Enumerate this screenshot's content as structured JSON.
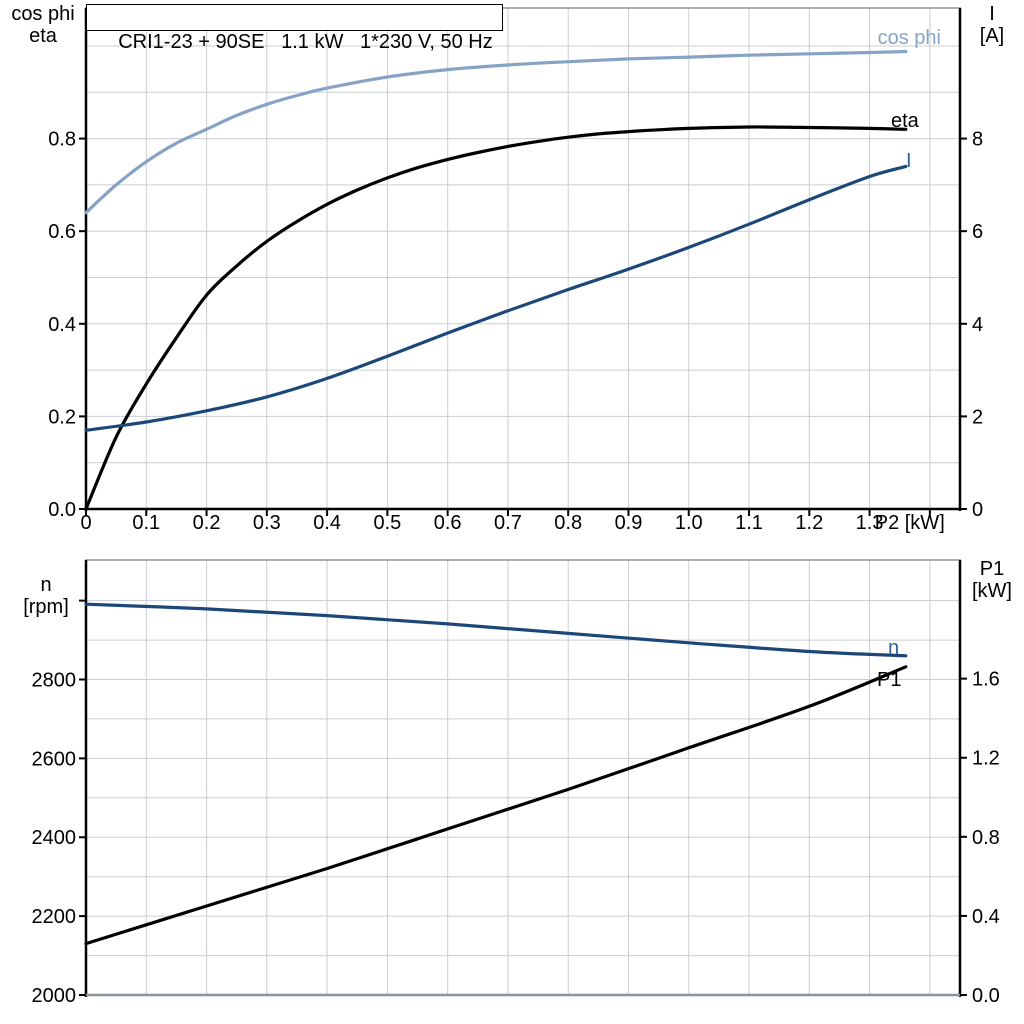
{
  "page": {
    "background": "#ffffff"
  },
  "title": "CRI1-23 + 90SE   1.1 kW   1*230 V, 50 Hz",
  "colors": {
    "light_blue_curve": "#86a3c6",
    "dark_blue_curve": "#1b4878",
    "blue_label": "#2e639c",
    "black": "#000000",
    "grid": "#c9cdd2",
    "frame_gray": "#8f9499"
  },
  "chart_data": [
    {
      "type": "line",
      "title": "CRI1-23 + 90SE   1.1 kW   1*230 V, 50 Hz",
      "xlabel": "P2 [kW]",
      "ylabel_left": [
        "cos phi",
        "eta"
      ],
      "ylabel_right": [
        "I",
        "[A]"
      ],
      "xlim": [
        0,
        1.45
      ],
      "ylim_left": [
        0,
        1.082
      ],
      "ylim_right": [
        0,
        10.82
      ],
      "legend": "inline-end-labels",
      "grid": {
        "x_step": 0.1,
        "y_left_step": 0.1,
        "shown": true
      },
      "x_ticks": {
        "values": [
          0,
          0.1,
          0.2,
          0.3,
          0.4,
          0.5,
          0.6,
          0.7,
          0.8,
          0.9,
          1.0,
          1.1,
          1.2,
          1.3,
          1.4
        ],
        "labels": [
          "0",
          "0.1",
          "0.2",
          "0.3",
          "0.4",
          "0.5",
          "0.6",
          "0.7",
          "0.8",
          "0.9",
          "1.0",
          "1.1",
          "1.2",
          "1.3",
          ""
        ]
      },
      "left_ticks": {
        "values": [
          0,
          0.2,
          0.4,
          0.6,
          0.8
        ],
        "labels": [
          "0.0",
          "0.2",
          "0.4",
          "0.6",
          "0.8"
        ]
      },
      "right_ticks": {
        "values": [
          0,
          2,
          4,
          6,
          8
        ],
        "labels": [
          "0",
          "2",
          "4",
          "6",
          "8"
        ]
      },
      "series": [
        {
          "name": "cos phi",
          "axis": "left",
          "color": "#86a3c6",
          "label_color": "#86a3c6",
          "x": [
            0,
            0.05,
            0.1,
            0.15,
            0.2,
            0.25,
            0.3,
            0.35,
            0.4,
            0.5,
            0.6,
            0.7,
            0.8,
            0.9,
            1.0,
            1.1,
            1.2,
            1.3,
            1.36
          ],
          "y": [
            0.64,
            0.7,
            0.75,
            0.79,
            0.82,
            0.85,
            0.874,
            0.893,
            0.909,
            0.933,
            0.949,
            0.959,
            0.966,
            0.972,
            0.976,
            0.98,
            0.983,
            0.986,
            0.988
          ]
        },
        {
          "name": "eta",
          "axis": "left",
          "color": "#000000",
          "label_color": "#000000",
          "x": [
            0,
            0.05,
            0.1,
            0.15,
            0.2,
            0.25,
            0.3,
            0.35,
            0.4,
            0.45,
            0.5,
            0.55,
            0.6,
            0.65,
            0.7,
            0.75,
            0.8,
            0.85,
            0.9,
            0.95,
            1.0,
            1.1,
            1.2,
            1.3,
            1.36
          ],
          "y": [
            0,
            0.155,
            0.27,
            0.37,
            0.462,
            0.525,
            0.578,
            0.621,
            0.658,
            0.689,
            0.715,
            0.737,
            0.755,
            0.77,
            0.783,
            0.794,
            0.803,
            0.81,
            0.815,
            0.819,
            0.822,
            0.825,
            0.824,
            0.822,
            0.82
          ]
        },
        {
          "name": "I",
          "axis": "right",
          "color": "#1b4878",
          "label_color": "#2e639c",
          "x": [
            0,
            0.1,
            0.2,
            0.3,
            0.4,
            0.5,
            0.6,
            0.7,
            0.8,
            0.9,
            1.0,
            1.1,
            1.2,
            1.3,
            1.36
          ],
          "y": [
            1.7,
            1.88,
            2.12,
            2.42,
            2.82,
            3.3,
            3.8,
            4.28,
            4.74,
            5.18,
            5.65,
            6.15,
            6.68,
            7.18,
            7.4
          ]
        }
      ]
    },
    {
      "type": "line",
      "title": "",
      "xlabel": "",
      "ylabel_left": [
        "n",
        "[rpm]"
      ],
      "ylabel_right": [
        "P1",
        "[kW]"
      ],
      "xlim": [
        0,
        1.45
      ],
      "ylim_left": [
        2000,
        3103
      ],
      "ylim_right": [
        0,
        2.2
      ],
      "legend": "inline-end-labels",
      "grid": {
        "x_step": 0.1,
        "y_left_step": 100,
        "shown": true
      },
      "x_ticks": {
        "values": [],
        "labels": []
      },
      "left_ticks": {
        "values": [
          2000,
          2200,
          2400,
          2600,
          2800,
          3000
        ],
        "labels": [
          "2000",
          "2200",
          "2400",
          "2600",
          "2800",
          ""
        ]
      },
      "right_ticks": {
        "values": [
          0,
          0.4,
          0.8,
          1.2,
          1.6
        ],
        "labels": [
          "0.0",
          "0.4",
          "0.8",
          "1.2",
          "1.6"
        ]
      },
      "series": [
        {
          "name": "n",
          "axis": "left",
          "color": "#1b4878",
          "label_color": "#2e639c",
          "x": [
            0,
            0.2,
            0.4,
            0.6,
            0.8,
            1.0,
            1.2,
            1.36
          ],
          "y": [
            2991,
            2979,
            2962,
            2941,
            2917,
            2893,
            2871,
            2860
          ]
        },
        {
          "name": "P1",
          "axis": "right",
          "color": "#000000",
          "label_color": "#000000",
          "x": [
            0,
            0.2,
            0.4,
            0.6,
            0.8,
            1.0,
            1.2,
            1.36
          ],
          "y": [
            0.26,
            0.45,
            0.64,
            0.84,
            1.04,
            1.25,
            1.46,
            1.66
          ]
        }
      ]
    }
  ]
}
